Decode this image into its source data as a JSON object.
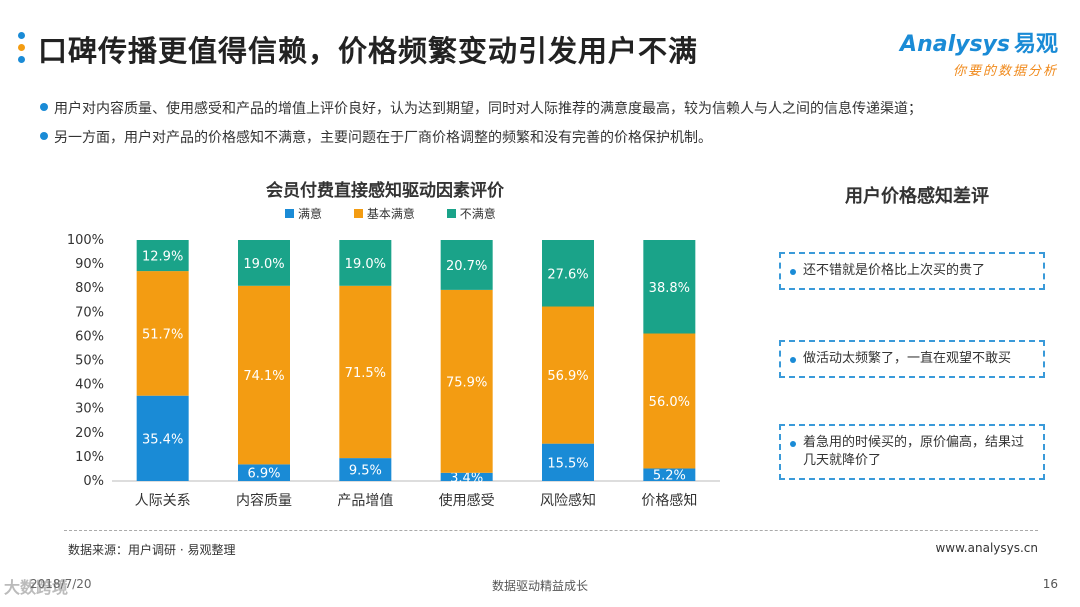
{
  "title": "口碑传播更值得信赖，价格频繁变动引发用户不满",
  "logo": {
    "brand": "nalysys",
    "brand_initial": "A",
    "cn": "易观",
    "slogan": "你要的数据分析"
  },
  "bullets": [
    "用户对内容质量、使用感受和产品的增值上评价良好，认为达到期望，同时对人际推荐的满意度最高，较为信赖人与人之间的信息传递渠道；",
    "另一方面，用户对产品的价格感知不满意，主要问题在于厂商价格调整的频繁和没有完善的价格保护机制。"
  ],
  "chart_data": {
    "type": "bar",
    "stacked": true,
    "title": "会员付费直接感知驱动因素评价",
    "categories": [
      "人际关系",
      "内容质量",
      "产品增值",
      "使用感受",
      "风险感知",
      "价格感知"
    ],
    "series": [
      {
        "name": "满意",
        "color": "#1a8bd6",
        "values": [
          35.4,
          6.9,
          9.5,
          3.4,
          15.5,
          5.2
        ]
      },
      {
        "name": "基本满意",
        "color": "#f39c12",
        "values": [
          51.7,
          74.1,
          71.5,
          75.9,
          56.9,
          56.0
        ]
      },
      {
        "name": "不满意",
        "color": "#1aa389",
        "values": [
          12.9,
          19.0,
          19.0,
          20.7,
          27.6,
          38.8
        ]
      }
    ],
    "yticks": [
      "0%",
      "10%",
      "20%",
      "30%",
      "40%",
      "50%",
      "60%",
      "70%",
      "80%",
      "90%",
      "100%"
    ],
    "ylim": [
      0,
      100
    ],
    "legend_position": "top"
  },
  "right_panel": {
    "title": "用户价格感知差评",
    "comments": [
      "还不错就是价格比上次买的贵了",
      "做活动太频繁了，一直在观望不敢买",
      "着急用的时候买的，原价偏高，结果过几天就降价了"
    ]
  },
  "footer": {
    "source": "数据来源：用户调研 · 易观整理",
    "website": "www.analysys.cn",
    "date": "2018/7/20",
    "center": "数据驱动精益成长",
    "page": "16",
    "watermark": "大数跨境"
  },
  "colors": {
    "accent": "#1a8bd6",
    "orange": "#f39c12",
    "teal": "#1aa389",
    "dot_blue": "#1a8bd6",
    "dot_orange": "#f39c12"
  }
}
